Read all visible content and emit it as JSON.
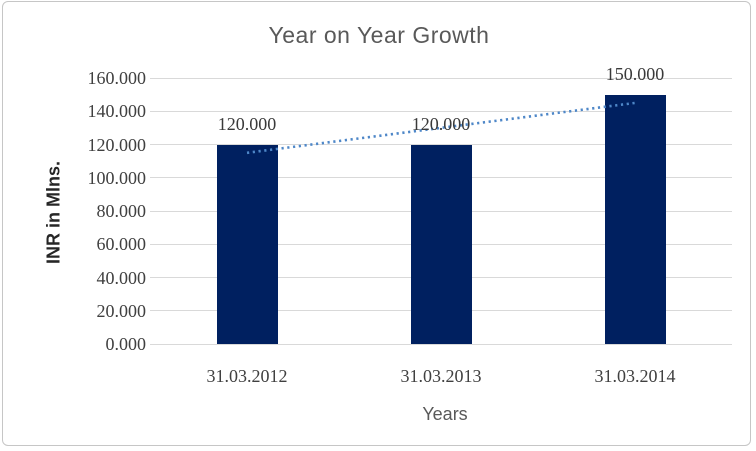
{
  "frame": {
    "border_color": "#c6c6c6",
    "background": "#ffffff"
  },
  "chart_data": {
    "type": "bar",
    "title": "Year on Year Growth",
    "xlabel": "Years",
    "ylabel": "INR in Mlns.",
    "categories": [
      "31.03.2012",
      "31.03.2013",
      "31.03.2014"
    ],
    "values": [
      120,
      120,
      150
    ],
    "data_labels": [
      "120.000",
      "120.000",
      "150.000"
    ],
    "ylim": [
      0,
      160
    ],
    "yticks": [
      {
        "value": 0,
        "label": "0.000"
      },
      {
        "value": 20,
        "label": "20.000"
      },
      {
        "value": 40,
        "label": "40.000"
      },
      {
        "value": 60,
        "label": "60.000"
      },
      {
        "value": 80,
        "label": "80.000"
      },
      {
        "value": 100,
        "label": "100.000"
      },
      {
        "value": 120,
        "label": "120.000"
      },
      {
        "value": 140,
        "label": "140.000"
      },
      {
        "value": 160,
        "label": "160.000"
      }
    ],
    "grid": true,
    "legend": false,
    "trendline": {
      "style": "dotted",
      "start_value": 115,
      "end_value": 145,
      "color": "#4e87c8"
    },
    "colors": {
      "bar": "#002060",
      "gridline": "#d9d9d9",
      "tick_label": "#404040",
      "title": "#595959"
    }
  }
}
